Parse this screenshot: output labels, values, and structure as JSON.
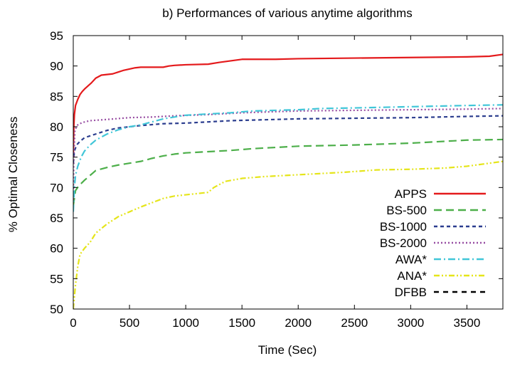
{
  "chart_data": {
    "type": "line",
    "title": "b) Performances of various anytime algorithms",
    "xlabel": "Time (Sec)",
    "ylabel": "% Optimal Closeness",
    "xlim": [
      0,
      3820
    ],
    "ylim": [
      50,
      95
    ],
    "xticks": [
      0,
      500,
      1000,
      1500,
      2000,
      2500,
      3000,
      3500
    ],
    "yticks": [
      50,
      55,
      60,
      65,
      70,
      75,
      80,
      85,
      90,
      95
    ],
    "grid": false,
    "legend_position": "bottom-right, inside plot",
    "series": [
      {
        "name": "APPS",
        "color": "#e41a1c",
        "dash": "solid",
        "points": [
          [
            0,
            75
          ],
          [
            5,
            80
          ],
          [
            10,
            82
          ],
          [
            20,
            83.5
          ],
          [
            40,
            84.5
          ],
          [
            60,
            85.3
          ],
          [
            80,
            85.8
          ],
          [
            100,
            86.2
          ],
          [
            130,
            86.7
          ],
          [
            160,
            87.2
          ],
          [
            200,
            88
          ],
          [
            250,
            88.5
          ],
          [
            300,
            88.6
          ],
          [
            350,
            88.7
          ],
          [
            400,
            89.0
          ],
          [
            450,
            89.3
          ],
          [
            500,
            89.5
          ],
          [
            550,
            89.7
          ],
          [
            600,
            89.8
          ],
          [
            800,
            89.8
          ],
          [
            850,
            90.0
          ],
          [
            900,
            90.1
          ],
          [
            1000,
            90.2
          ],
          [
            1200,
            90.3
          ],
          [
            1300,
            90.6
          ],
          [
            1500,
            91.1
          ],
          [
            1800,
            91.1
          ],
          [
            2000,
            91.2
          ],
          [
            2500,
            91.3
          ],
          [
            3000,
            91.4
          ],
          [
            3500,
            91.5
          ],
          [
            3700,
            91.6
          ],
          [
            3820,
            91.9
          ]
        ]
      },
      {
        "name": "BS-500",
        "color": "#4daf4a",
        "dash": "long-dash",
        "points": [
          [
            0,
            67
          ],
          [
            20,
            69.5
          ],
          [
            50,
            70.3
          ],
          [
            100,
            71.2
          ],
          [
            150,
            72
          ],
          [
            200,
            72.8
          ],
          [
            300,
            73.3
          ],
          [
            400,
            73.7
          ],
          [
            500,
            74.0
          ],
          [
            600,
            74.3
          ],
          [
            700,
            74.8
          ],
          [
            800,
            75.2
          ],
          [
            900,
            75.5
          ],
          [
            1000,
            75.7
          ],
          [
            1200,
            75.9
          ],
          [
            1400,
            76.1
          ],
          [
            1600,
            76.4
          ],
          [
            1800,
            76.6
          ],
          [
            2000,
            76.8
          ],
          [
            2500,
            77.0
          ],
          [
            3000,
            77.3
          ],
          [
            3300,
            77.6
          ],
          [
            3500,
            77.8
          ],
          [
            3820,
            77.9
          ]
        ]
      },
      {
        "name": "BS-1000",
        "color": "#2c3e8f",
        "dash": "short-dash",
        "points": [
          [
            0,
            74
          ],
          [
            10,
            76
          ],
          [
            30,
            77
          ],
          [
            60,
            77.6
          ],
          [
            100,
            78.2
          ],
          [
            200,
            78.8
          ],
          [
            300,
            79.4
          ],
          [
            400,
            79.8
          ],
          [
            500,
            80.0
          ],
          [
            600,
            80.2
          ],
          [
            800,
            80.5
          ],
          [
            1000,
            80.6
          ],
          [
            1200,
            80.8
          ],
          [
            1400,
            81.0
          ],
          [
            1600,
            81.1
          ],
          [
            1800,
            81.2
          ],
          [
            2000,
            81.3
          ],
          [
            2500,
            81.4
          ],
          [
            3000,
            81.5
          ],
          [
            3500,
            81.7
          ],
          [
            3820,
            81.8
          ]
        ]
      },
      {
        "name": "BS-2000",
        "color": "#984ea3",
        "dash": "dotted",
        "points": [
          [
            0,
            68
          ],
          [
            5,
            75
          ],
          [
            15,
            79.5
          ],
          [
            40,
            80.3
          ],
          [
            80,
            80.7
          ],
          [
            150,
            81.0
          ],
          [
            300,
            81.2
          ],
          [
            500,
            81.5
          ],
          [
            700,
            81.6
          ],
          [
            900,
            81.8
          ],
          [
            1200,
            82.0
          ],
          [
            1500,
            82.3
          ],
          [
            2000,
            82.6
          ],
          [
            2500,
            82.7
          ],
          [
            3000,
            82.8
          ],
          [
            3500,
            82.9
          ],
          [
            3820,
            83.0
          ]
        ]
      },
      {
        "name": "AWA*",
        "color": "#41c6d8",
        "dash": "dash-dot",
        "points": [
          [
            0,
            66
          ],
          [
            10,
            70
          ],
          [
            20,
            72
          ],
          [
            40,
            73.5
          ],
          [
            70,
            75
          ],
          [
            100,
            76
          ],
          [
            150,
            77
          ],
          [
            200,
            77.8
          ],
          [
            300,
            78.8
          ],
          [
            400,
            79.5
          ],
          [
            500,
            80.0
          ],
          [
            600,
            80.3
          ],
          [
            700,
            80.8
          ],
          [
            800,
            81.3
          ],
          [
            900,
            81.6
          ],
          [
            1000,
            81.9
          ],
          [
            1200,
            82.1
          ],
          [
            1400,
            82.3
          ],
          [
            1600,
            82.6
          ],
          [
            1800,
            82.7
          ],
          [
            2000,
            82.8
          ],
          [
            2200,
            83.0
          ],
          [
            2500,
            83.1
          ],
          [
            3000,
            83.3
          ],
          [
            3500,
            83.5
          ],
          [
            3820,
            83.6
          ]
        ]
      },
      {
        "name": "ANA*",
        "color": "#e5e51a",
        "dash": "dash-dot-dot",
        "points": [
          [
            0,
            50
          ],
          [
            20,
            54
          ],
          [
            40,
            57
          ],
          [
            60,
            59
          ],
          [
            100,
            60
          ],
          [
            150,
            61
          ],
          [
            200,
            62.5
          ],
          [
            300,
            64
          ],
          [
            400,
            65.2
          ],
          [
            500,
            66.0
          ],
          [
            600,
            66.8
          ],
          [
            700,
            67.5
          ],
          [
            800,
            68.2
          ],
          [
            900,
            68.6
          ],
          [
            1000,
            68.8
          ],
          [
            1100,
            69.0
          ],
          [
            1200,
            69.2
          ],
          [
            1250,
            70.0
          ],
          [
            1350,
            71.0
          ],
          [
            1500,
            71.5
          ],
          [
            1700,
            71.8
          ],
          [
            1900,
            72.0
          ],
          [
            2100,
            72.2
          ],
          [
            2400,
            72.5
          ],
          [
            2700,
            72.9
          ],
          [
            3000,
            73.0
          ],
          [
            3300,
            73.2
          ],
          [
            3500,
            73.5
          ],
          [
            3820,
            74.3
          ]
        ]
      },
      {
        "name": "DFBB",
        "color": "#000000",
        "dash": "medium-dash",
        "points": []
      }
    ]
  }
}
